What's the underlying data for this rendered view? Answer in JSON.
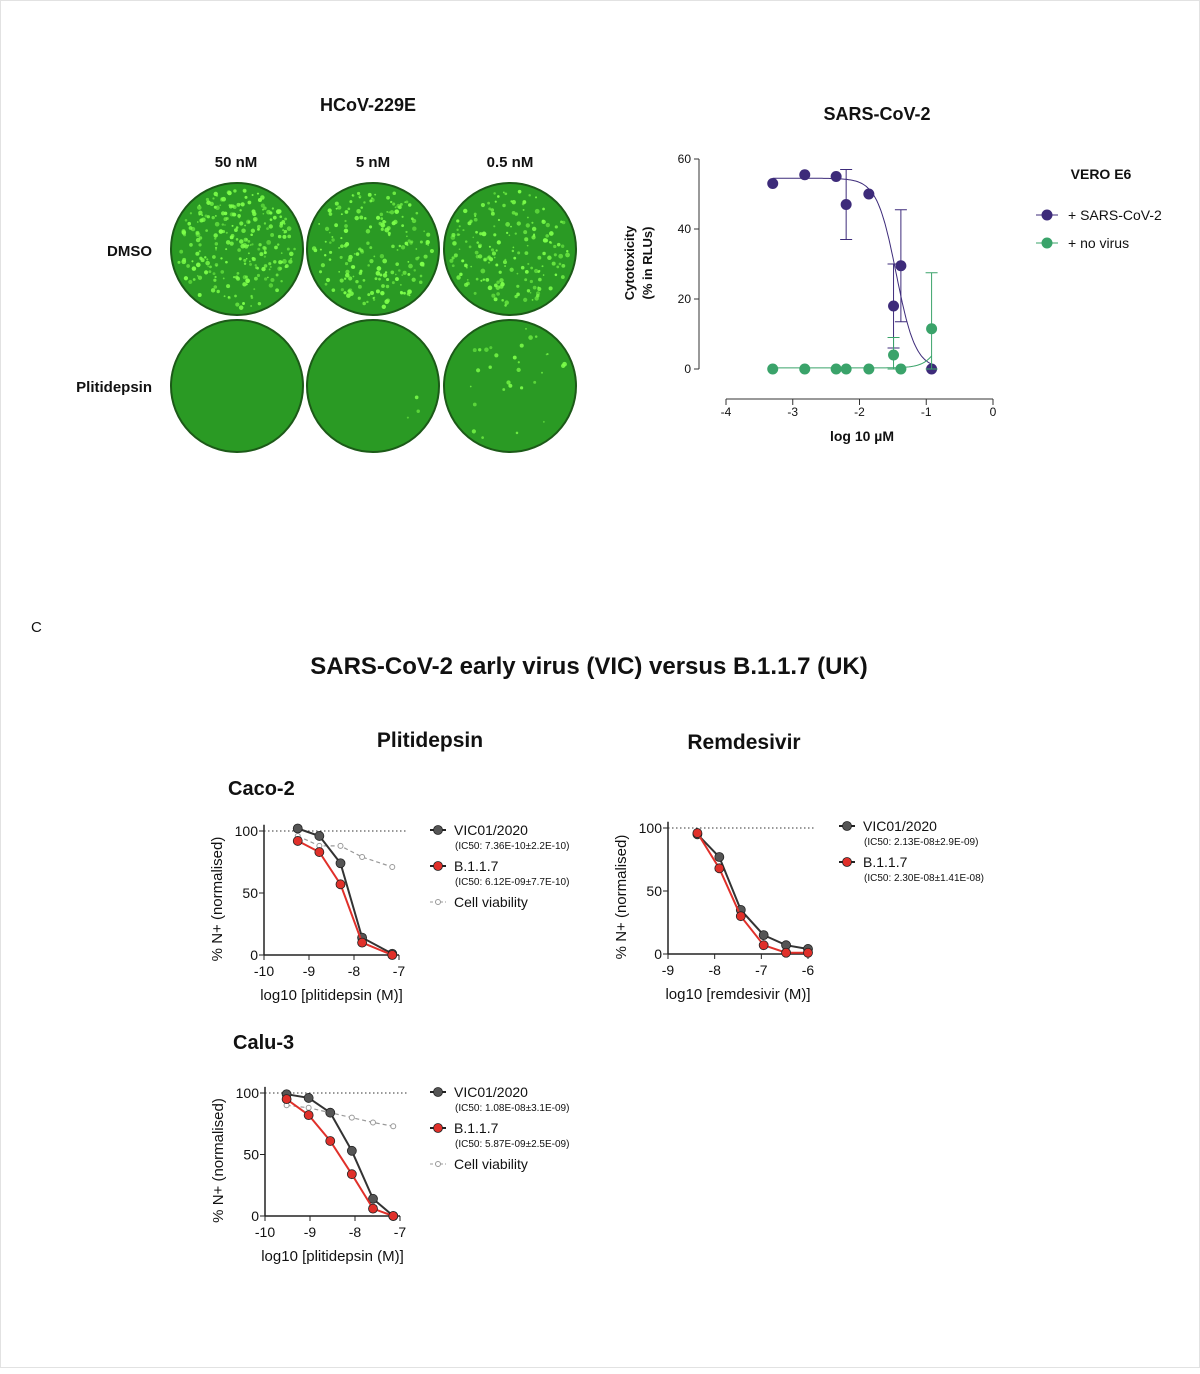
{
  "panel_c_letter": "C",
  "hcov": {
    "title": "HCoV-229E",
    "columns": [
      "50 nM",
      "5 nM",
      "0.5 nM"
    ],
    "rows": [
      "DMSO",
      "Plitidepsin"
    ],
    "colors": {
      "dish": "#2a9a24",
      "spot": "#7dff4a",
      "rim": "#1c5a18"
    }
  },
  "chart_data": [
    {
      "type": "scatter",
      "title": "SARS-CoV-2",
      "legend_title": "VERO E6",
      "xlabel": "log 10 µM",
      "ylabel": [
        "Cytotoxicity",
        "(% in RLUs)"
      ],
      "xlim": [
        -4,
        0
      ],
      "ylim": [
        0,
        60
      ],
      "xticks": [
        "-4",
        "-3",
        "-2",
        "-1",
        "0"
      ],
      "yticks": [
        "0",
        "20",
        "40",
        "60"
      ],
      "legend_position": "right",
      "fit_curves": true,
      "series": [
        {
          "name": "+ SARS-CoV-2",
          "color": "#3d2b7a",
          "x": [
            -3.3,
            -2.82,
            -2.35,
            -2.2,
            -1.86,
            -1.49,
            -1.38,
            -0.92
          ],
          "y": [
            53,
            55.5,
            55,
            47,
            50,
            18,
            29.5,
            0
          ],
          "err_low": [
            null,
            null,
            null,
            37,
            null,
            6,
            13.5,
            null
          ],
          "err_high": [
            null,
            null,
            null,
            57,
            null,
            30,
            45.5,
            null
          ]
        },
        {
          "name": "+ no virus",
          "color": "#3aa36a",
          "x": [
            -3.3,
            -2.82,
            -2.35,
            -2.2,
            -1.86,
            -1.49,
            -1.38,
            -0.92
          ],
          "y": [
            0,
            0,
            0,
            0,
            0,
            4,
            0,
            11.5
          ],
          "err_low": [
            null,
            null,
            null,
            null,
            null,
            0,
            null,
            0
          ],
          "err_high": [
            null,
            null,
            null,
            null,
            null,
            9,
            null,
            27.5
          ]
        }
      ]
    },
    {
      "type": "line",
      "suptitle": "SARS-CoV-2 early virus (VIC) versus B.1.1.7 (UK)",
      "column_title": "Plitidepsin",
      "row_title": "Caco-2",
      "xlabel": "log10 [plitidepsin (M)]",
      "ylabel": "% N+ (normalised)",
      "xlim": [
        -10,
        -7
      ],
      "ylim": [
        0,
        100
      ],
      "xticks": [
        "-10",
        "-9",
        "-8",
        "-7"
      ],
      "yticks": [
        "0",
        "50",
        "100"
      ],
      "reference_line": 100,
      "legend_position": "right",
      "series": [
        {
          "name": "VIC01/2020",
          "note": "(IC50: 7.36E-10±2.2E-10)",
          "color": "#333333",
          "x": [
            -9.25,
            -8.77,
            -8.3,
            -7.82,
            -7.15
          ],
          "y": [
            102,
            96,
            74,
            14,
            1
          ]
        },
        {
          "name": "B.1.1.7",
          "note": "(IC50: 6.12E-09±7.7E-10)",
          "color": "#e0302a",
          "x": [
            -9.25,
            -8.77,
            -8.3,
            -7.82,
            -7.15
          ],
          "y": [
            92,
            83,
            57,
            10,
            0
          ]
        },
        {
          "name": "Cell viability",
          "color": "#999999",
          "dashed": true,
          "x": [
            -9.25,
            -8.77,
            -8.3,
            -7.82,
            -7.15
          ],
          "y": [
            96,
            88,
            88,
            79,
            71
          ]
        }
      ]
    },
    {
      "type": "line",
      "column_title": "Remdesivir",
      "xlabel": "log10 [remdesivir (M)]",
      "ylabel": "% N+ (normalised)",
      "xlim": [
        -9,
        -6
      ],
      "ylim": [
        0,
        100
      ],
      "xticks": [
        "-9",
        "-8",
        "-7",
        "-6"
      ],
      "yticks": [
        "0",
        "50",
        "100"
      ],
      "reference_line": 100,
      "legend_position": "right",
      "series": [
        {
          "name": "VIC01/2020",
          "note": "(IC50: 2.13E-08±2.9E-09)",
          "color": "#333333",
          "x": [
            -8.37,
            -7.9,
            -7.44,
            -6.95,
            -6.47,
            -6.0
          ],
          "y": [
            95,
            77,
            35,
            15,
            7,
            4
          ]
        },
        {
          "name": "B.1.1.7",
          "note": "(IC50: 2.30E-08±1.41E-08)",
          "color": "#e0302a",
          "x": [
            -8.37,
            -7.9,
            -7.44,
            -6.95,
            -6.47,
            -6.0
          ],
          "y": [
            96,
            68,
            30,
            7,
            1,
            1
          ]
        }
      ]
    },
    {
      "type": "line",
      "row_title": "Calu-3",
      "xlabel": "log10 [plitidepsin (M)]",
      "ylabel": "% N+ (normalised)",
      "xlim": [
        -10,
        -7
      ],
      "ylim": [
        0,
        100
      ],
      "xticks": [
        "-10",
        "-9",
        "-8",
        "-7"
      ],
      "yticks": [
        "0",
        "50",
        "100"
      ],
      "reference_line": 100,
      "legend_position": "right",
      "series": [
        {
          "name": "VIC01/2020",
          "note": "(IC50: 1.08E-08±3.1E-09)",
          "color": "#333333",
          "x": [
            -9.52,
            -9.03,
            -8.55,
            -8.07,
            -7.6,
            -7.15
          ],
          "y": [
            99,
            96,
            84,
            53,
            14,
            0
          ]
        },
        {
          "name": "B.1.1.7",
          "note": "(IC50: 5.87E-09±2.5E-09)",
          "color": "#e0302a",
          "x": [
            -9.52,
            -9.03,
            -8.55,
            -8.07,
            -7.6,
            -7.15
          ],
          "y": [
            95,
            82,
            61,
            34,
            6,
            0
          ]
        },
        {
          "name": "Cell viability",
          "color": "#999999",
          "dashed": true,
          "x": [
            -9.52,
            -9.03,
            -8.55,
            -8.07,
            -7.6,
            -7.15
          ],
          "y": [
            90,
            88,
            84,
            80,
            76,
            73
          ]
        }
      ]
    }
  ]
}
